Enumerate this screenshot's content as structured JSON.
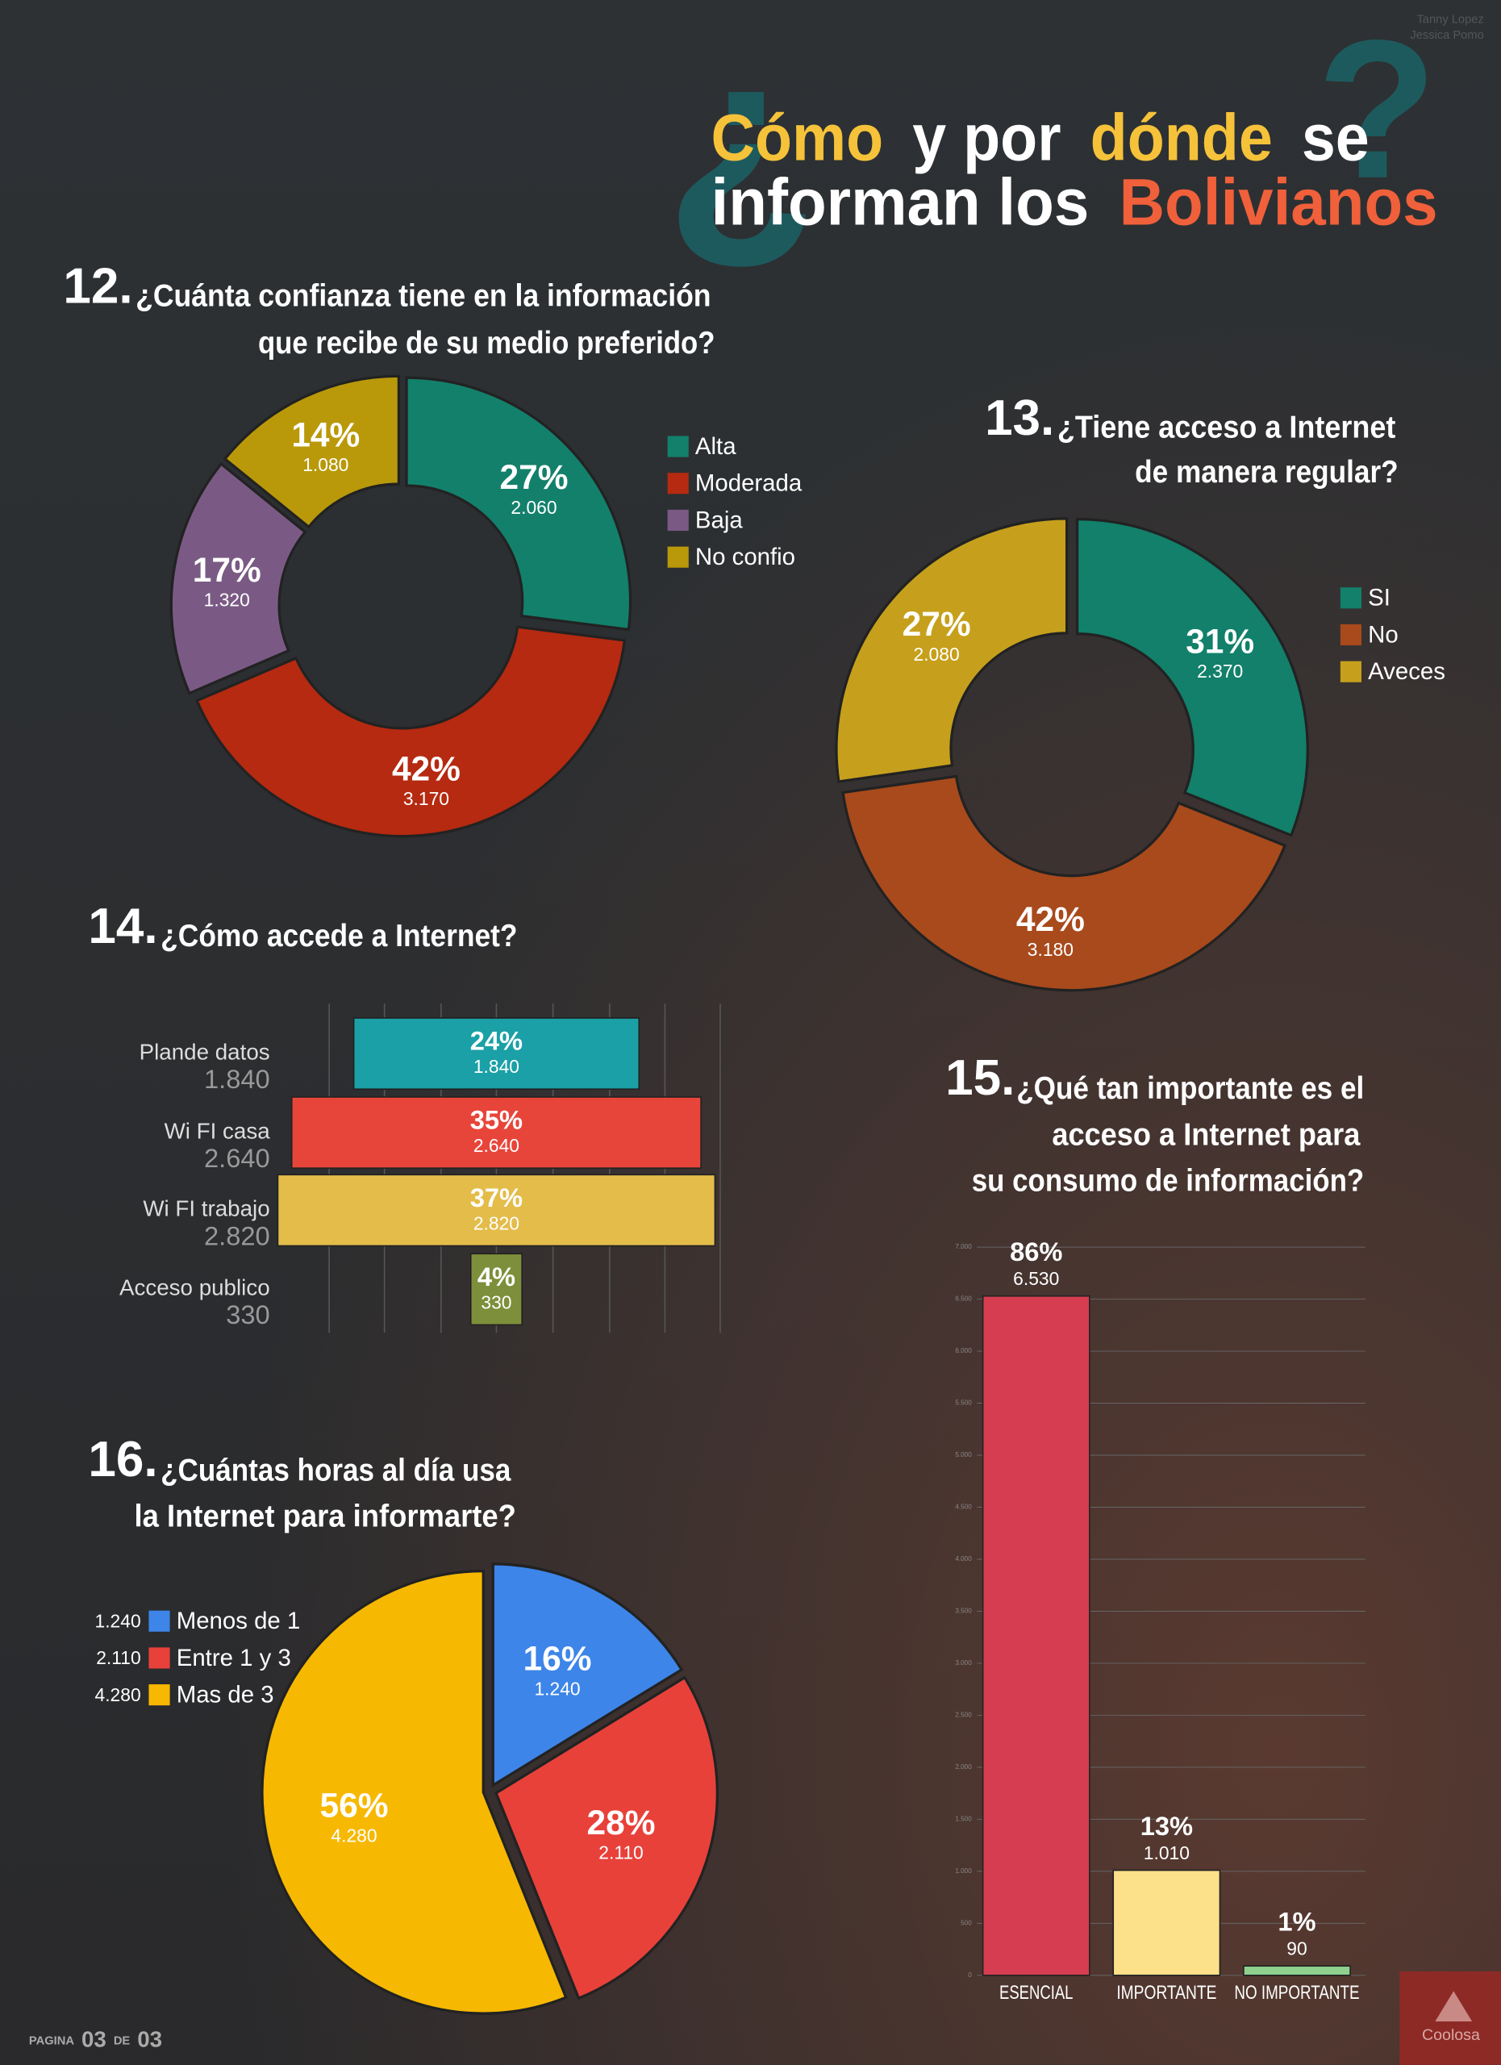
{
  "header": {
    "title_marks": [
      "¿",
      "?"
    ],
    "title_lines": [
      [
        "Cómo",
        "y por",
        "dónde",
        "se"
      ],
      [
        "informan los",
        "Bolivianos"
      ]
    ],
    "credits": [
      "Tanny Lopez",
      "Jessica Pomo"
    ]
  },
  "footer": {
    "page": [
      "PAGINA",
      "03",
      "DE",
      "03"
    ],
    "brand": "Coolosa"
  },
  "chart_data": [
    {
      "type": "donut",
      "number": "12.",
      "title_lines": [
        "¿Cuánta confianza tiene en la información",
        "que recibe de su medio preferido?"
      ],
      "categories": [
        "Alta",
        "Moderada",
        "Baja",
        "No confio"
      ],
      "values": [
        2060,
        3170,
        1320,
        1080
      ],
      "value_labels": [
        "2.060",
        "3.170",
        "1.320",
        "1.080"
      ],
      "shares": [
        27,
        42,
        17,
        14
      ],
      "share_labels": [
        "27%",
        "42%",
        "17%",
        "14%"
      ],
      "colors": [
        "#13806b",
        "#b52a10",
        "#7a5a85",
        "#b9990a"
      ]
    },
    {
      "type": "donut",
      "number": "13.",
      "title_lines": [
        "¿Tiene acceso a Internet",
        "de manera regular?"
      ],
      "categories": [
        "SI",
        "No",
        "Aveces"
      ],
      "values": [
        2370,
        3180,
        2080
      ],
      "value_labels": [
        "2.370",
        "3.180",
        "2.080"
      ],
      "shares": [
        31,
        42,
        27
      ],
      "share_labels": [
        "31%",
        "42%",
        "27%"
      ],
      "colors": [
        "#12806a",
        "#a84a1c",
        "#c6a01c"
      ]
    },
    {
      "type": "funnel",
      "number": "14.",
      "title_lines": [
        "¿Cómo accede a Internet?"
      ],
      "categories": [
        "Plande datos",
        "Wi FI casa",
        "Wi FI trabajo",
        "Acceso publico"
      ],
      "values": [
        1840,
        2640,
        2820,
        330
      ],
      "value_labels": [
        "1.840",
        "2.640",
        "2.820",
        "330"
      ],
      "shares": [
        24,
        35,
        37,
        4
      ],
      "share_labels": [
        "24%",
        "35%",
        "37%",
        "4%"
      ],
      "colors": [
        "#1aa0a6",
        "#e8453a",
        "#e4bc4a",
        "#7d8f3a"
      ]
    },
    {
      "type": "bar",
      "number": "15.",
      "title_lines": [
        "¿Qué tan importante es el",
        "acceso a Internet para",
        "su consumo de información?"
      ],
      "categories": [
        "ESENCIAL",
        "IMPORTANTE",
        "NO IMPORTANTE"
      ],
      "values": [
        6530,
        1010,
        90
      ],
      "value_labels": [
        "6.530",
        "1.010",
        "90"
      ],
      "shares": [
        86,
        13,
        1
      ],
      "share_labels": [
        "86%",
        "13%",
        "1%"
      ],
      "colors": [
        "#d63d50",
        "#fde08a",
        "#8fd08f"
      ],
      "ylim": [
        0,
        7000
      ],
      "yticks": [
        0,
        500,
        {
          "value": 1000,
          "label": "1.000"
        },
        {
          "value": 1500,
          "label": "1.500"
        },
        {
          "value": 2000,
          "label": "2.000"
        },
        {
          "value": 2500,
          "label": "2.500"
        },
        {
          "value": 3000,
          "label": "3.000"
        },
        {
          "value": 3500,
          "label": "3.500"
        },
        {
          "value": 4000,
          "label": "4.000"
        },
        {
          "value": 4500,
          "label": "4.500"
        },
        {
          "value": 5000,
          "label": "5.000"
        },
        {
          "value": 5500,
          "label": "5.500"
        },
        {
          "value": 6000,
          "label": "6.000"
        },
        {
          "value": 6500,
          "label": "6.500"
        },
        {
          "value": 7000,
          "label": "7.000"
        }
      ],
      "grid": true
    },
    {
      "type": "pie",
      "number": "16.",
      "title_lines": [
        "¿Cuántas horas al día usa",
        "la Internet para informarte?"
      ],
      "categories": [
        "Menos de 1",
        "Entre 1 y 3",
        "Mas de 3"
      ],
      "values": [
        1240,
        2110,
        4280
      ],
      "value_labels": [
        "1.240",
        "2.110",
        "4.280"
      ],
      "shares": [
        16,
        28,
        56
      ],
      "share_labels": [
        "16%",
        "28%",
        "56%"
      ],
      "colors": [
        "#3d85e8",
        "#e8413a",
        "#f7b801"
      ]
    }
  ]
}
